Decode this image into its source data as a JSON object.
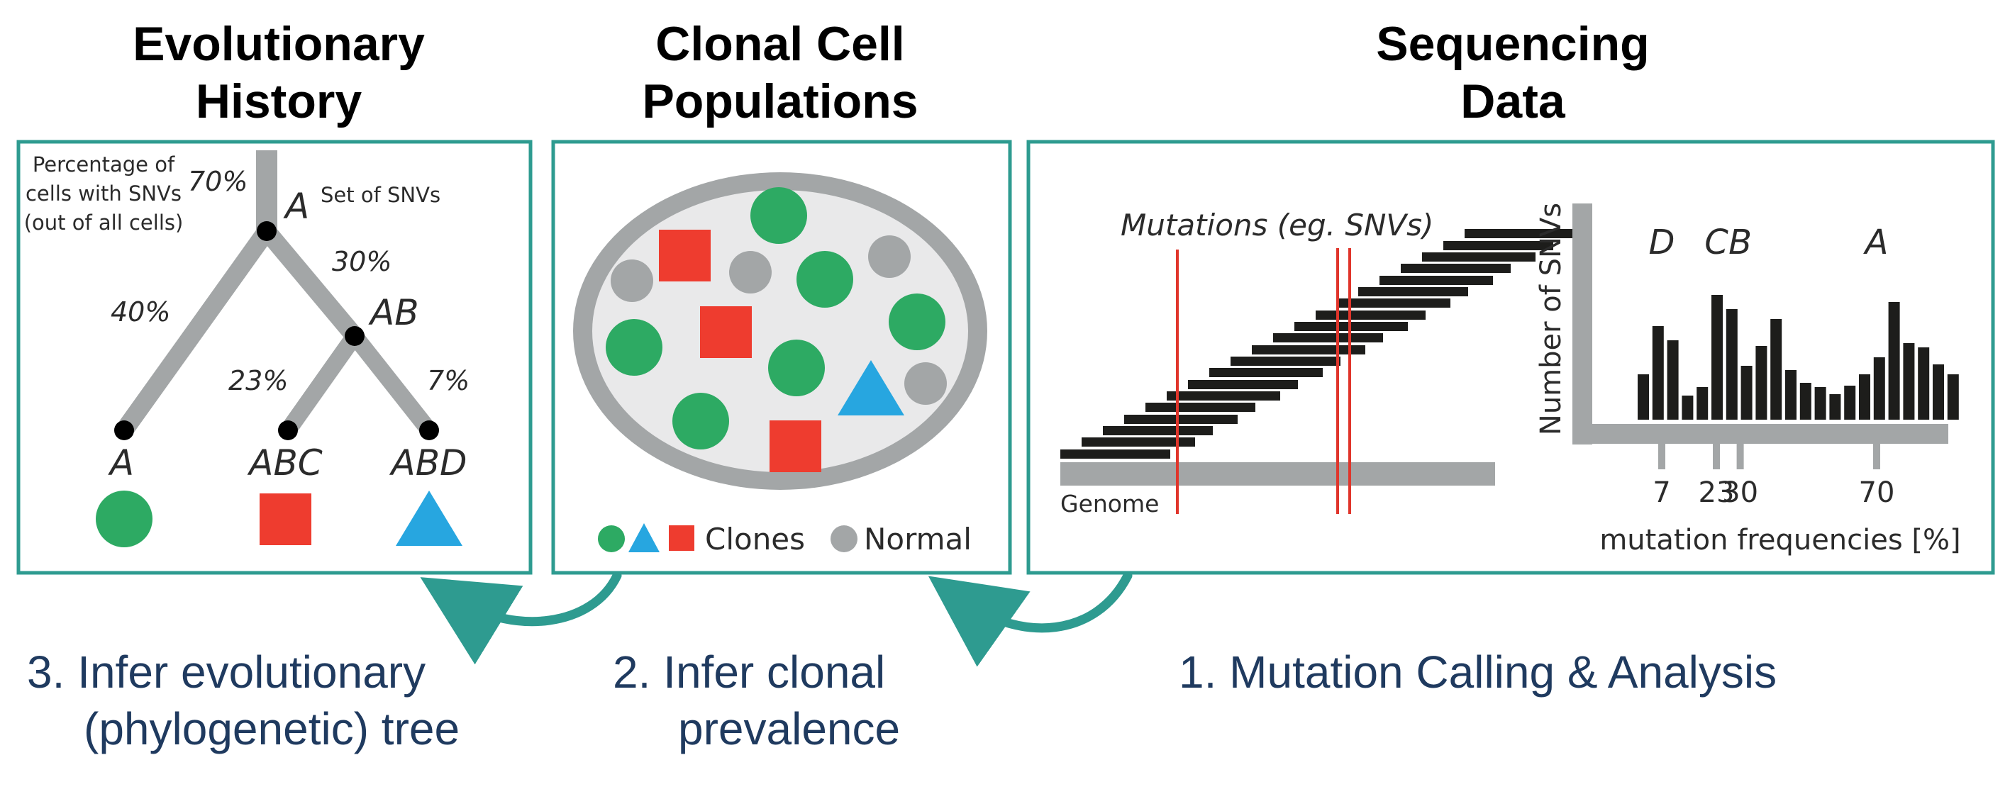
{
  "headings": {
    "evolutionary": [
      "Evolutionary",
      "History"
    ],
    "clonal": [
      "Clonal Cell",
      "Populations"
    ],
    "sequencing": [
      "Sequencing",
      "Data"
    ]
  },
  "tree": {
    "note": [
      "Percentage of",
      "cells with SNVs",
      "(out of all cells)"
    ],
    "set_label": "Set of SNVs",
    "pct_root": "70%",
    "pct_right": "30%",
    "pct_left": "40%",
    "pct_abc": "23%",
    "pct_abd": "7%",
    "node_a": "A",
    "node_ab": "AB",
    "leaf_a": "A",
    "leaf_abc": "ABC",
    "leaf_abd": "ABD"
  },
  "clones": {
    "legend_clones": "Clones",
    "legend_normal": "Normal"
  },
  "sequencing": {
    "mutations_label": "Mutations (eg. SNVs)",
    "genome_label": "Genome"
  },
  "chart_data": {
    "type": "bar",
    "ylabel": "Number of SNVs",
    "xlabel": "mutation frequencies [%]",
    "tick_labels": [
      "7",
      "23",
      "30",
      "70"
    ],
    "tick_positions": [
      7,
      23,
      30,
      70
    ],
    "peak_labels": [
      "D",
      "C",
      "B",
      "A"
    ],
    "peak_positions": [
      7,
      23,
      30,
      70
    ],
    "values": [
      0.32,
      0.66,
      0.56,
      0.17,
      0.23,
      0.88,
      0.78,
      0.38,
      0.52,
      0.71,
      0.35,
      0.26,
      0.23,
      0.18,
      0.24,
      0.32,
      0.44,
      0.83,
      0.54,
      0.51,
      0.39,
      0.32
    ],
    "x_range": [
      -2,
      86
    ]
  },
  "steps": {
    "step3": [
      "3. Infer evolutionary",
      "(phylogenetic) tree"
    ],
    "step2": [
      "2. Infer clonal",
      "prevalence"
    ],
    "step1": "1. Mutation Calling & Analysis"
  },
  "colors": {
    "teal": "#2e9b90",
    "green": "#2daa63",
    "red": "#ee3c2f",
    "blue": "#27a6e0",
    "gray": "#a3a6a7",
    "navy": "#1f3a5f"
  }
}
